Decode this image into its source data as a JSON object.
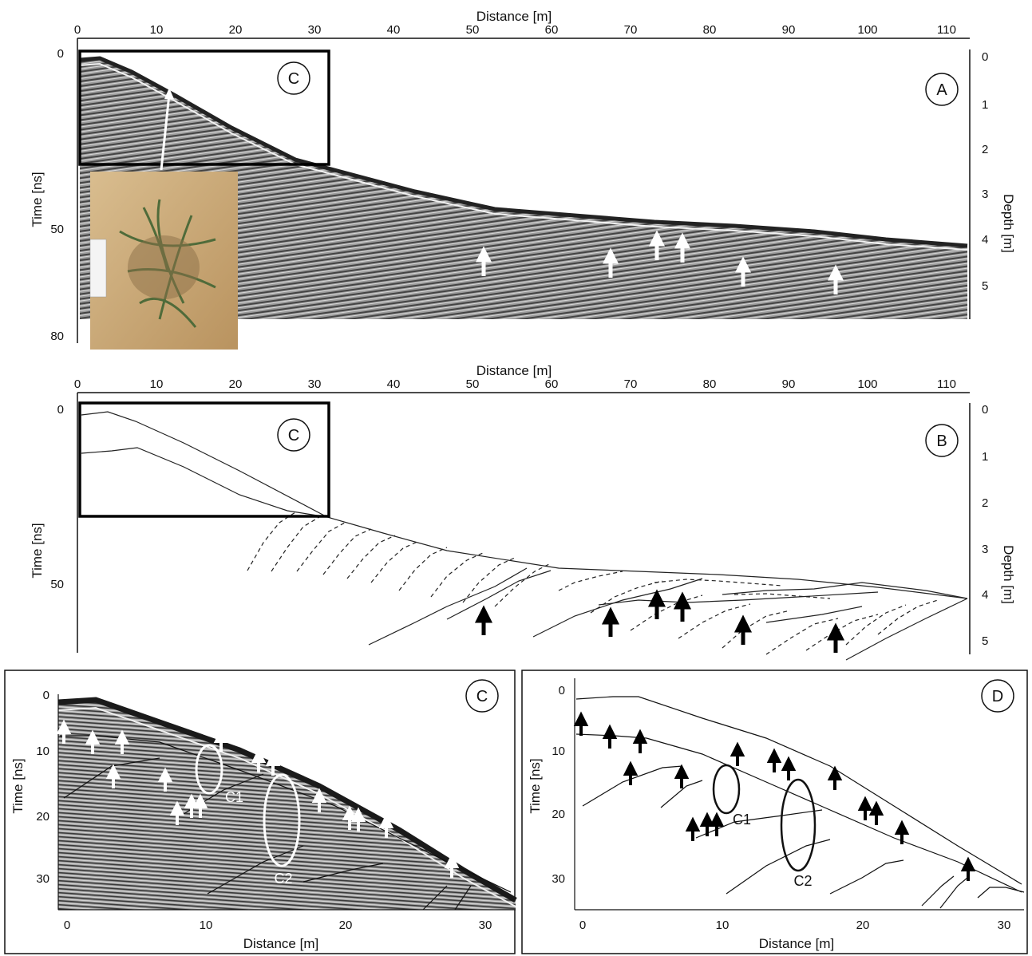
{
  "panel_a": {
    "letter": "A",
    "box_letter": "C",
    "x_axis": {
      "label": "Distance [m]",
      "ticks": [
        "0",
        "10",
        "20",
        "30",
        "40",
        "50",
        "60",
        "70",
        "80",
        "90",
        "100",
        "110"
      ]
    },
    "y_left": {
      "label": "Time [ns]",
      "ticks": [
        "0",
        "50",
        "80"
      ]
    },
    "y_right": {
      "label": "Depth [m]",
      "ticks": [
        "0",
        "1",
        "2",
        "3",
        "4",
        "5"
      ]
    }
  },
  "panel_b": {
    "letter": "B",
    "box_letter": "C",
    "x_axis": {
      "label": "Distance [m]",
      "ticks": [
        "0",
        "10",
        "20",
        "30",
        "40",
        "50",
        "60",
        "70",
        "80",
        "90",
        "100",
        "110"
      ]
    },
    "y_left": {
      "label": "Time [ns]",
      "ticks": [
        "0",
        "50"
      ]
    },
    "y_right": {
      "label": "Depth [m]",
      "ticks": [
        "0",
        "1",
        "2",
        "3",
        "4",
        "5"
      ]
    }
  },
  "panel_c": {
    "letter": "C",
    "x_axis": {
      "label": "Distance [m]",
      "ticks": [
        "0",
        "10",
        "20",
        "30"
      ]
    },
    "y_axis": {
      "label": "Time [ns]",
      "ticks": [
        "0",
        "10",
        "20",
        "30"
      ]
    },
    "ellipse_labels": [
      "C1",
      "C2"
    ]
  },
  "panel_d": {
    "letter": "D",
    "x_axis": {
      "label": "Distance [m]",
      "ticks": [
        "0",
        "10",
        "20",
        "30"
      ]
    },
    "y_axis": {
      "label": "Time [ns]",
      "ticks": [
        "0",
        "10",
        "20",
        "30"
      ]
    },
    "ellipse_labels": [
      "C1",
      "C2"
    ]
  },
  "colors": {
    "radargram_dark": "#2a2a2a",
    "radargram_mid": "#8a8a8a",
    "sand": "#c9a97a",
    "arrow_black": "#000000",
    "arrow_white": "#ffffff"
  }
}
